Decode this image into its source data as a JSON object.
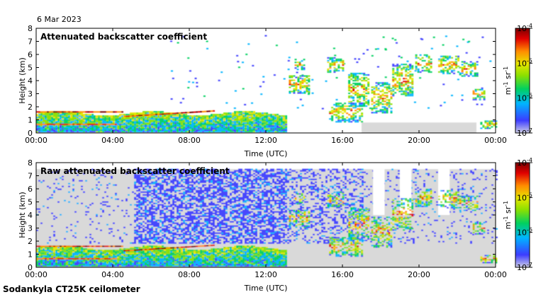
{
  "date_label": "6 Mar 2023",
  "footer": "Sodankyla CT25K ceilometer",
  "colors": {
    "background": "#ffffff",
    "no_signal_gray": "#d9d9d9",
    "colormap": [
      "#cfcfe6",
      "#3c3cff",
      "#00b4ff",
      "#00d060",
      "#8ce000",
      "#e6e600",
      "#ff8c00",
      "#e00000",
      "#7a0000"
    ]
  },
  "chart_data": [
    {
      "type": "heatmap",
      "title": "Attenuated backscatter coefficient",
      "xlabel": "Time (UTC)",
      "ylabel": "Height (km)",
      "x_ticks": [
        "00:00",
        "04:00",
        "08:00",
        "12:00",
        "16:00",
        "20:00",
        "00:00"
      ],
      "y_ticks": [
        "0",
        "1",
        "2",
        "3",
        "4",
        "5",
        "6",
        "7",
        "8"
      ],
      "xlim_hours": [
        0,
        24
      ],
      "ylim_km": [
        0,
        8
      ],
      "colorbar": {
        "unit_label": "m-1 sr-1",
        "scale": "log",
        "range": [
          1e-07,
          0.0001
        ],
        "tick_labels": [
          "10-4",
          "10-5",
          "10-6",
          "10-7"
        ]
      },
      "features": [
        {
          "name": "boundary layer aerosol",
          "t_start_h": 0,
          "t_end_h": 13,
          "z_km": [
            0.2,
            1.7
          ]
        },
        {
          "name": "rising cloud base",
          "t_start_h": 4.5,
          "t_end_h": 9,
          "z_km": [
            1.2,
            1.9
          ]
        },
        {
          "name": "mid-level cloud",
          "t_start_h": 13,
          "t_end_h": 14.5,
          "z_km": [
            3.0,
            4.2
          ]
        },
        {
          "name": "mid-level cloud",
          "t_start_h": 15.0,
          "t_end_h": 19.5,
          "z_km": [
            1.5,
            5.0
          ]
        },
        {
          "name": "mid-level cloud",
          "t_start_h": 19.7,
          "t_end_h": 23,
          "z_km": [
            4.0,
            5.8
          ]
        }
      ]
    },
    {
      "type": "heatmap",
      "title": "Raw attenuated backscatter coefficient",
      "xlabel": "Time (UTC)",
      "ylabel": "Height (km)",
      "x_ticks": [
        "00:00",
        "04:00",
        "08:00",
        "12:00",
        "16:00",
        "20:00",
        "00:00"
      ],
      "y_ticks": [
        "0",
        "1",
        "2",
        "3",
        "4",
        "5",
        "6",
        "7",
        "8"
      ],
      "xlim_hours": [
        0,
        24
      ],
      "ylim_km": [
        0,
        8
      ],
      "colorbar": {
        "unit_label": "m-1 sr-1",
        "scale": "log",
        "range": [
          1e-07,
          0.0001
        ],
        "tick_labels": [
          "10-4",
          "10-5",
          "10-6",
          "10-7"
        ]
      },
      "features": [
        {
          "name": "noise",
          "t_start_h": 0,
          "t_end_h": 24,
          "z_km": [
            0,
            7.5
          ]
        },
        {
          "name": "boundary layer aerosol",
          "t_start_h": 0,
          "t_end_h": 13,
          "z_km": [
            0.2,
            1.7
          ]
        },
        {
          "name": "mid-level cloud",
          "t_start_h": 13,
          "t_end_h": 23,
          "z_km": [
            1.5,
            5.8
          ]
        }
      ]
    }
  ]
}
